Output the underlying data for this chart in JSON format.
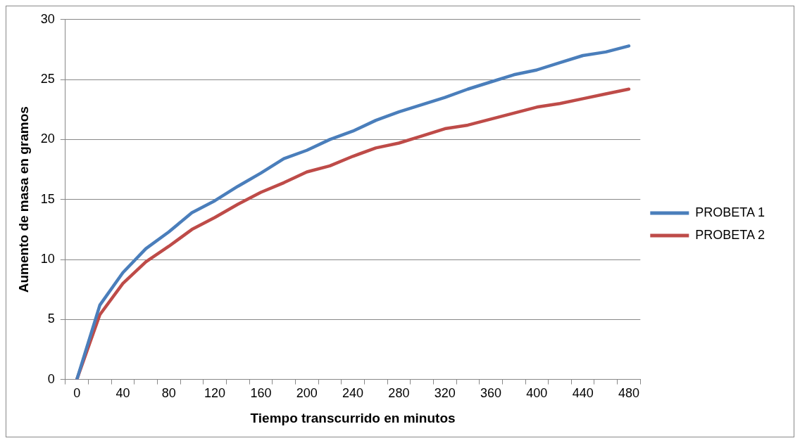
{
  "chart_data": {
    "type": "line",
    "xlabel": "Tiempo transcurrido en minutos",
    "ylabel": "Aumento de masa en gramos",
    "categories": [
      "0",
      null,
      "40",
      null,
      "80",
      null,
      "120",
      null,
      "160",
      null,
      "200",
      null,
      "240",
      null,
      "280",
      null,
      "320",
      null,
      "360",
      null,
      "400",
      null,
      "440",
      null,
      "480"
    ],
    "series": [
      {
        "name": "PROBETA 1",
        "color": "#4a7ebb",
        "values": [
          0,
          6.2,
          8.9,
          10.9,
          12.3,
          13.9,
          14.9,
          16.1,
          17.2,
          18.4,
          19.1,
          20.0,
          20.7,
          21.6,
          22.3,
          22.9,
          23.5,
          24.2,
          24.8,
          25.4,
          25.8,
          26.4,
          27.0,
          27.3,
          27.8
        ]
      },
      {
        "name": "PROBETA 2",
        "color": "#be4b48",
        "values": [
          0,
          5.4,
          8.0,
          9.8,
          11.1,
          12.5,
          13.5,
          14.6,
          15.6,
          16.4,
          17.3,
          17.8,
          18.6,
          19.3,
          19.7,
          20.3,
          20.9,
          21.2,
          21.7,
          22.2,
          22.7,
          23.0,
          23.4,
          23.8,
          24.2
        ]
      }
    ],
    "ylim": [
      0,
      30
    ],
    "yticks": [
      0,
      5,
      10,
      15,
      20,
      25,
      30
    ],
    "grid": "y",
    "legend": "right",
    "marker": "none",
    "line_style": "solid"
  }
}
